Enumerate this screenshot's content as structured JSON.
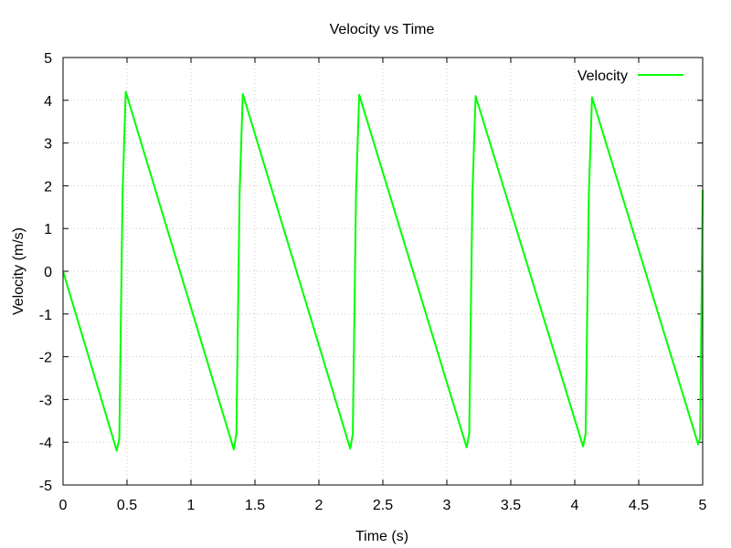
{
  "chart_data": {
    "type": "line",
    "title": "Velocity vs Time",
    "xlabel": "Time (s)",
    "ylabel": "Velocity (m/s)",
    "xlim": [
      0,
      5
    ],
    "ylim": [
      -5,
      5
    ],
    "x_ticks": [
      0,
      0.5,
      1,
      1.5,
      2,
      2.5,
      3,
      3.5,
      4,
      4.5,
      5
    ],
    "x_tick_labels": [
      "0",
      "0.5",
      "1",
      "1.5",
      "2",
      "2.5",
      "3",
      "3.5",
      "4",
      "4.5",
      "5"
    ],
    "y_ticks": [
      -5,
      -4,
      -3,
      -2,
      -1,
      0,
      1,
      2,
      3,
      4,
      5
    ],
    "y_tick_labels": [
      "-5",
      "-4",
      "-3",
      "-2",
      "-1",
      "0",
      "1",
      "2",
      "3",
      "4",
      "5"
    ],
    "grid": true,
    "legend_position": "top-right",
    "series": [
      {
        "name": "Velocity",
        "color": "#00ff00",
        "x": [
          0,
          0.42,
          0.44,
          0.465,
          0.49,
          1.335,
          1.355,
          1.38,
          1.405,
          2.245,
          2.265,
          2.29,
          2.315,
          3.155,
          3.175,
          3.2,
          3.225,
          4.065,
          4.085,
          4.11,
          4.135,
          4.965,
          4.98,
          4.99,
          5.0
        ],
        "y": [
          0,
          -4.2,
          -3.9,
          1.8,
          4.2,
          -4.17,
          -3.8,
          1.8,
          4.15,
          -4.15,
          -3.8,
          1.8,
          4.13,
          -4.12,
          -3.8,
          1.8,
          4.1,
          -4.1,
          -3.8,
          1.8,
          4.07,
          -4.05,
          -3.9,
          -1.0,
          1.9
        ]
      }
    ]
  }
}
